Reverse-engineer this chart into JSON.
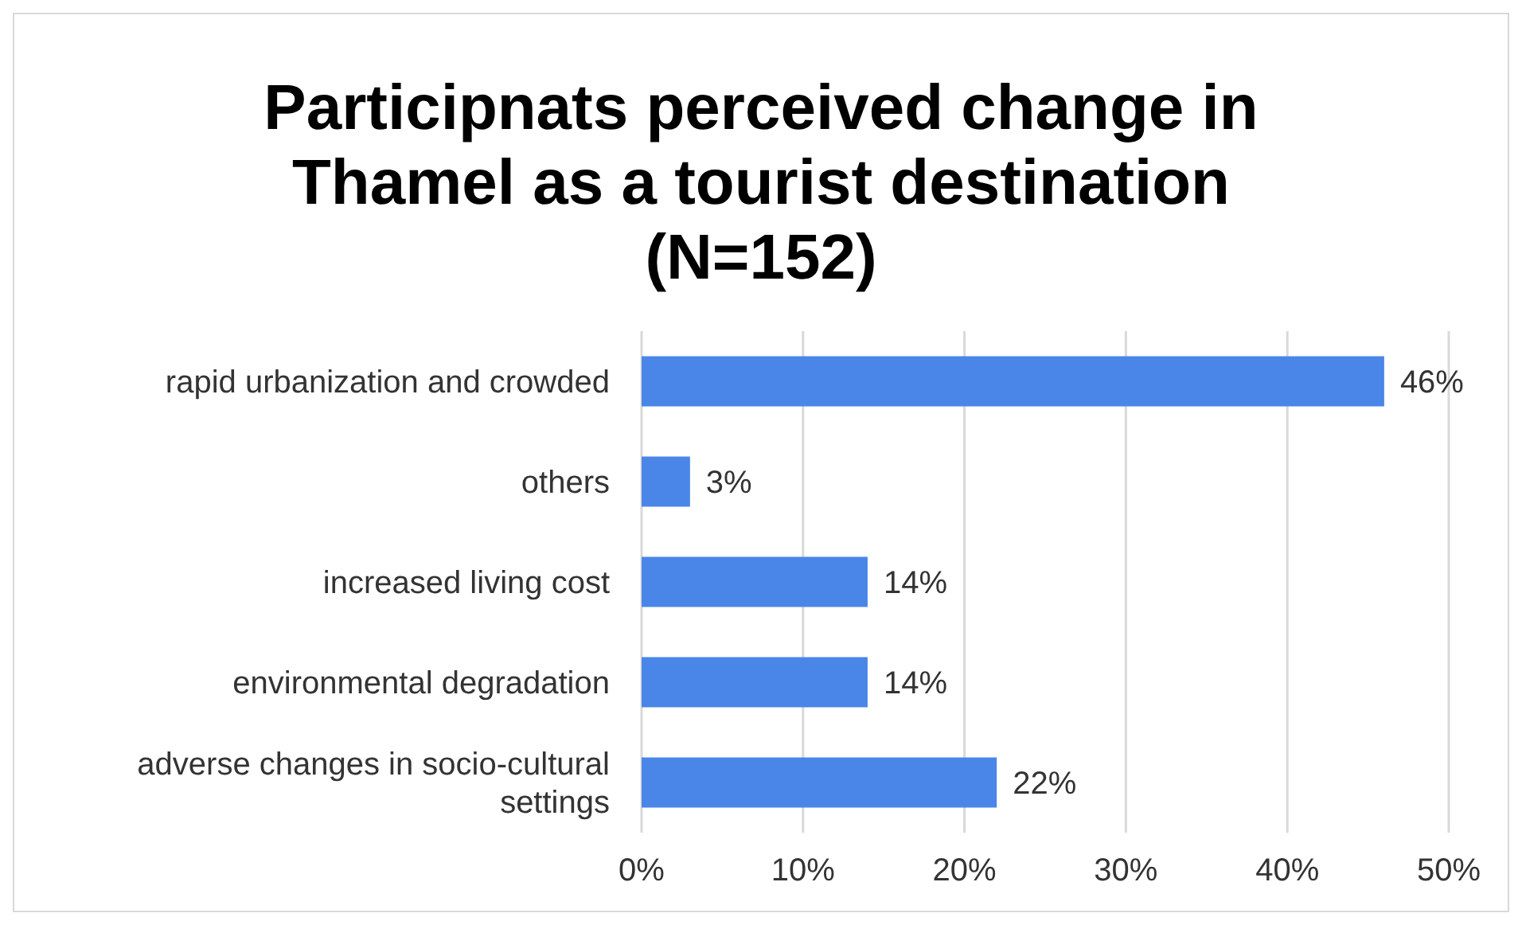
{
  "chart_data": {
    "type": "bar",
    "orientation": "horizontal",
    "title": "Participnats perceived change in Thamel as a tourist destination (N=152)",
    "categories": [
      "rapid urbanization and crowded",
      "others",
      "increased living cost",
      "environmental degradation",
      "adverse changes in socio-cultural settings"
    ],
    "values": [
      46,
      3,
      14,
      14,
      22
    ],
    "value_labels": [
      "46%",
      "3%",
      "14%",
      "14%",
      "22%"
    ],
    "color": "#4a86e8",
    "xlim": [
      0,
      50
    ],
    "xticks": [
      {
        "value": 0,
        "label": "0%"
      },
      {
        "value": 10,
        "label": "10%"
      },
      {
        "value": 20,
        "label": "20%"
      },
      {
        "value": 30,
        "label": "30%"
      },
      {
        "value": 40,
        "label": "40%"
      },
      {
        "value": 50,
        "label": "50%"
      }
    ],
    "grid": "x"
  }
}
